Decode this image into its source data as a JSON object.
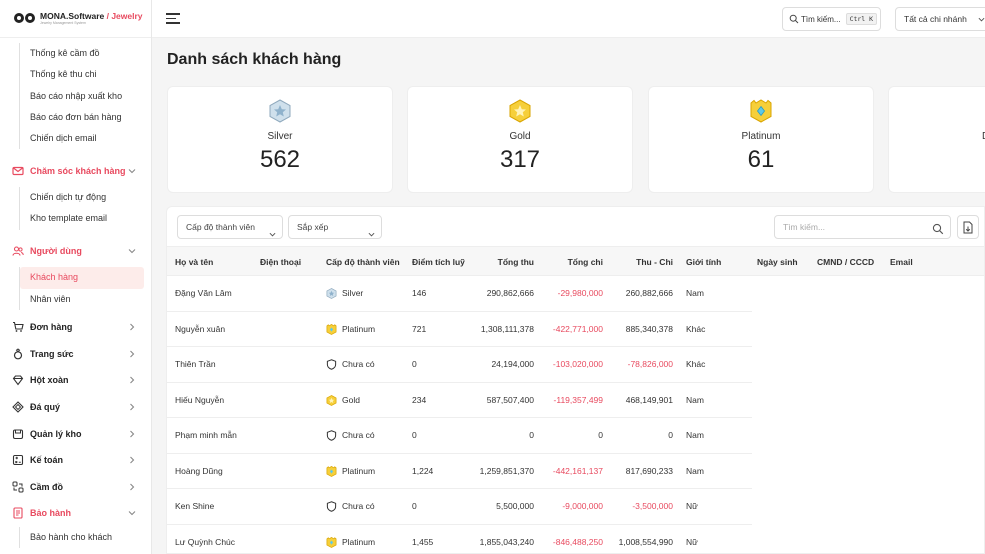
{
  "brand": {
    "name_main": "MONA.Software",
    "name_sep": " / ",
    "name_accent": "Jewelry",
    "subtitle": "Jewelry Management System"
  },
  "sidebar": {
    "report_subitems": [
      "Thống kê cầm đồ",
      "Thống kê thu chi",
      "Báo cáo nhập xuất kho",
      "Báo cáo đơn bán hàng",
      "Chiến dịch email"
    ],
    "care": {
      "label": "Chăm sóc khách hàng",
      "subitems": [
        "Chiến dịch tự động",
        "Kho template email"
      ]
    },
    "users": {
      "label": "Người dùng",
      "subitems": [
        "Khách hàng",
        "Nhân viên"
      ]
    },
    "items": [
      {
        "label": "Đơn hàng",
        "icon": "cart-icon"
      },
      {
        "label": "Trang sức",
        "icon": "ring-icon"
      },
      {
        "label": "Hột xoàn",
        "icon": "diamond-icon"
      },
      {
        "label": "Đá quý",
        "icon": "gem-icon"
      },
      {
        "label": "Quản lý kho",
        "icon": "warehouse-icon"
      },
      {
        "label": "Kế toán",
        "icon": "accounting-icon"
      },
      {
        "label": "Cầm đồ",
        "icon": "pawn-icon"
      }
    ],
    "warranty": {
      "label": "Bảo hành",
      "subitems": [
        "Bảo hành cho khách"
      ]
    }
  },
  "topbar": {
    "search_label": "Tìm kiếm...",
    "shortcut": "Ctrl K",
    "branch": "Tất cả chi nhánh"
  },
  "page": {
    "title": "Danh sách khách hàng"
  },
  "cards": [
    {
      "label": "Silver",
      "value": "562"
    },
    {
      "label": "Gold",
      "value": "317"
    },
    {
      "label": "Platinum",
      "value": "61"
    },
    {
      "label": "D",
      "value": ""
    }
  ],
  "filters": {
    "level": "Cấp độ thành viên",
    "sort": "Sắp xếp",
    "search_placeholder": "Tìm kiếm..."
  },
  "table": {
    "headers": [
      "Họ và tên",
      "Điện thoại",
      "Cấp độ thành viên",
      "Điểm tích luỹ",
      "Tổng thu",
      "Tổng chi",
      "Thu - Chi",
      "Giới tính",
      "Ngày sinh",
      "CMND / CCCD",
      "Email"
    ],
    "rows": [
      {
        "name": "Đặng Văn Lâm",
        "phone": "",
        "level": "Silver",
        "level_icon": "silver-badge-icon",
        "points": "146",
        "income": "290,862,666",
        "expense": "-29,980,000",
        "net": "260,882,666",
        "net_neg": false,
        "gender": "Nam"
      },
      {
        "name": "Nguyễn xuân",
        "phone": "",
        "level": "Platinum",
        "level_icon": "platinum-badge-icon",
        "points": "721",
        "income": "1,308,111,378",
        "expense": "-422,771,000",
        "net": "885,340,378",
        "net_neg": false,
        "gender": "Khác"
      },
      {
        "name": "Thiên Trần",
        "phone": "",
        "level": "Chưa có",
        "level_icon": "shield-icon",
        "points": "0",
        "income": "24,194,000",
        "expense": "-103,020,000",
        "net": "-78,826,000",
        "net_neg": true,
        "gender": "Khác"
      },
      {
        "name": "Hiếu Nguyễn",
        "phone": "",
        "level": "Gold",
        "level_icon": "gold-badge-icon",
        "points": "234",
        "income": "587,507,400",
        "expense": "-119,357,499",
        "net": "468,149,901",
        "net_neg": false,
        "gender": "Nam"
      },
      {
        "name": "Phạm minh mẫn",
        "phone": "",
        "level": "Chưa có",
        "level_icon": "shield-icon",
        "points": "0",
        "income": "0",
        "expense": "0",
        "net": "0",
        "net_neg": false,
        "gender": "Nam"
      },
      {
        "name": "Hoàng Dũng",
        "phone": "",
        "level": "Platinum",
        "level_icon": "platinum-badge-icon",
        "points": "1,224",
        "income": "1,259,851,370",
        "expense": "-442,161,137",
        "net": "817,690,233",
        "net_neg": false,
        "gender": "Nam"
      },
      {
        "name": "Ken Shine",
        "phone": "",
        "level": "Chưa có",
        "level_icon": "shield-icon",
        "points": "0",
        "income": "5,500,000",
        "expense": "-9,000,000",
        "net": "-3,500,000",
        "net_neg": true,
        "gender": "Nữ"
      },
      {
        "name": "Lư Quỳnh Chúc",
        "phone": "",
        "level": "Platinum",
        "level_icon": "platinum-badge-icon",
        "points": "1,455",
        "income": "1,855,043,240",
        "expense": "-846,488,250",
        "net": "1,008,554,990",
        "net_neg": false,
        "gender": "Nữ"
      }
    ]
  },
  "colors": {
    "accent": "#e84a5f",
    "silver": "#9fb6c9",
    "gold": "#f2c12e",
    "platinum": "#f2c12e"
  }
}
